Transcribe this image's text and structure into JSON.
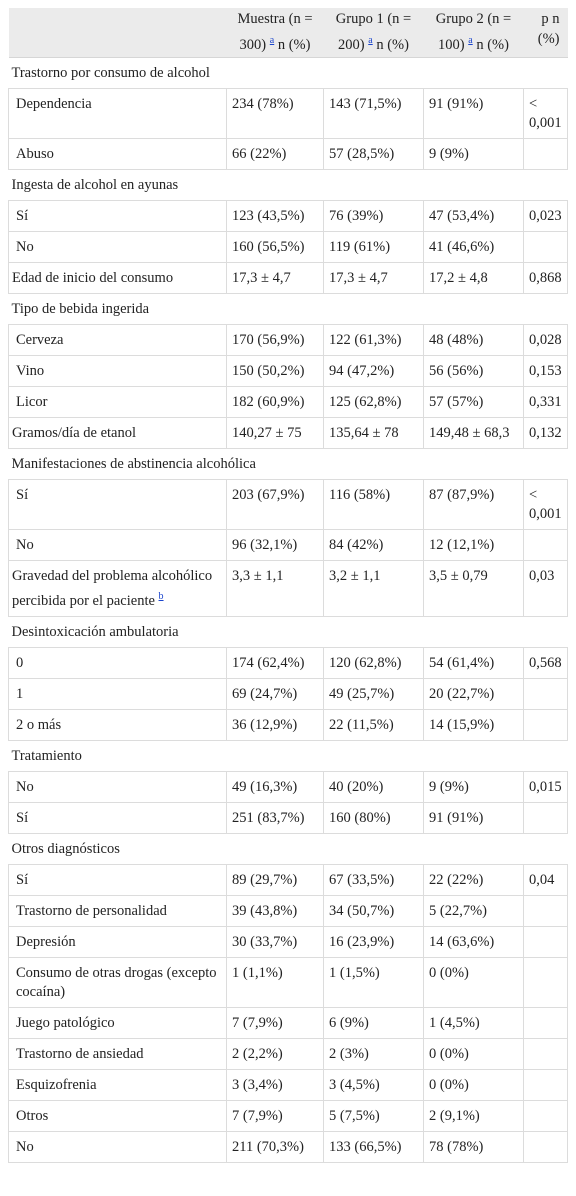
{
  "header": {
    "col_empty": "",
    "muestra": "Muestra (n = 300)",
    "grupo1": "Grupo 1 (n = 200)",
    "grupo2": "Grupo 2 (n = 100)",
    "sup_a": "a",
    "unit": "n (%)",
    "p": "p n (%)"
  },
  "sections": {
    "s1": "Trastorno por consumo de alcohol",
    "s2": "Ingesta de alcohol en ayunas",
    "s3": "Tipo de bebida ingerida",
    "s4": "Manifestaciones de abstinencia alcohólica",
    "s5": "Desintoxicación ambulatoria",
    "s6": "Tratamiento",
    "s7": "Otros diagnósticos"
  },
  "rows": {
    "r1": {
      "label": "Dependencia",
      "m": "234 (78%)",
      "g1": "143 (71,5%)",
      "g2": "91 (91%)",
      "p": "< 0,001"
    },
    "r2": {
      "label": "Abuso",
      "m": "66 (22%)",
      "g1": "57 (28,5%)",
      "g2": "9 (9%)",
      "p": ""
    },
    "r3": {
      "label": "Sí",
      "m": "123 (43,5%)",
      "g1": "76 (39%)",
      "g2": "47 (53,4%)",
      "p": "0,023"
    },
    "r4": {
      "label": "No",
      "m": "160 (56,5%)",
      "g1": "119 (61%)",
      "g2": "41 (46,6%)",
      "p": ""
    },
    "r5": {
      "label": "Edad de inicio del consumo",
      "m": "17,3 ± 4,7",
      "g1": "17,3 ± 4,7",
      "g2": "17,2 ± 4,8",
      "p": "0,868"
    },
    "r6": {
      "label": "Cerveza",
      "m": "170 (56,9%)",
      "g1": "122 (61,3%)",
      "g2": "48 (48%)",
      "p": "0,028"
    },
    "r7": {
      "label": "Vino",
      "m": "150 (50,2%)",
      "g1": "94 (47,2%)",
      "g2": "56 (56%)",
      "p": "0,153"
    },
    "r8": {
      "label": "Licor",
      "m": "182 (60,9%)",
      "g1": "125 (62,8%)",
      "g2": "57 (57%)",
      "p": "0,331"
    },
    "r9": {
      "label": "Gramos/día de etanol",
      "m": "140,27 ± 75",
      "g1": "135,64 ± 78",
      "g2": "149,48 ± 68,3",
      "p": "0,132"
    },
    "r10": {
      "label": "Sí",
      "m": "203 (67,9%)",
      "g1": "116 (58%)",
      "g2": "87 (87,9%)",
      "p": "< 0,001"
    },
    "r11": {
      "label": "No",
      "m": "96 (32,1%)",
      "g1": "84 (42%)",
      "g2": "12 (12,1%)",
      "p": ""
    },
    "r12": {
      "label": "Gravedad del problema alcohólico percibida por el paciente",
      "sup": "b",
      "m": "3,3 ± 1,1",
      "g1": "3,2 ± 1,1",
      "g2": "3,5 ± 0,79",
      "p": "0,03"
    },
    "r13": {
      "label": "0",
      "m": "174 (62,4%)",
      "g1": "120 (62,8%)",
      "g2": "54 (61,4%)",
      "p": "0,568"
    },
    "r14": {
      "label": "1",
      "m": "69 (24,7%)",
      "g1": "49 (25,7%)",
      "g2": "20 (22,7%)",
      "p": ""
    },
    "r15": {
      "label": "2 o más",
      "m": "36 (12,9%)",
      "g1": "22 (11,5%)",
      "g2": "14 (15,9%)",
      "p": ""
    },
    "r16": {
      "label": "No",
      "m": "49 (16,3%)",
      "g1": "40 (20%)",
      "g2": "9 (9%)",
      "p": "0,015"
    },
    "r17": {
      "label": "Sí",
      "m": "251 (83,7%)",
      "g1": "160 (80%)",
      "g2": "91 (91%)",
      "p": ""
    },
    "r18": {
      "label": "Sí",
      "m": "89 (29,7%)",
      "g1": "67 (33,5%)",
      "g2": "22 (22%)",
      "p": "0,04"
    },
    "r19": {
      "label": "Trastorno de personalidad",
      "m": "39 (43,8%)",
      "g1": "34 (50,7%)",
      "g2": "5 (22,7%)",
      "p": ""
    },
    "r20": {
      "label": "Depresión",
      "m": "30 (33,7%)",
      "g1": "16 (23,9%)",
      "g2": "14 (63,6%)",
      "p": ""
    },
    "r21": {
      "label": "Consumo de otras drogas (excepto cocaína)",
      "m": "1 (1,1%)",
      "g1": "1 (1,5%)",
      "g2": "0 (0%)",
      "p": ""
    },
    "r22": {
      "label": "Juego patológico",
      "m": "7 (7,9%)",
      "g1": "6 (9%)",
      "g2": "1 (4,5%)",
      "p": ""
    },
    "r23": {
      "label": "Trastorno de ansiedad",
      "m": "2 (2,2%)",
      "g1": "2 (3%)",
      "g2": "0 (0%)",
      "p": ""
    },
    "r24": {
      "label": "Esquizofrenia",
      "m": "3 (3,4%)",
      "g1": "3 (4,5%)",
      "g2": "0 (0%)",
      "p": ""
    },
    "r25": {
      "label": "Otros",
      "m": "7 (7,9%)",
      "g1": "5 (7,5%)",
      "g2": "2 (9,1%)",
      "p": ""
    },
    "r26": {
      "label": "No",
      "m": "211 (70,3%)",
      "g1": "133 (66,5%)",
      "g2": "78 (78%)",
      "p": ""
    }
  }
}
